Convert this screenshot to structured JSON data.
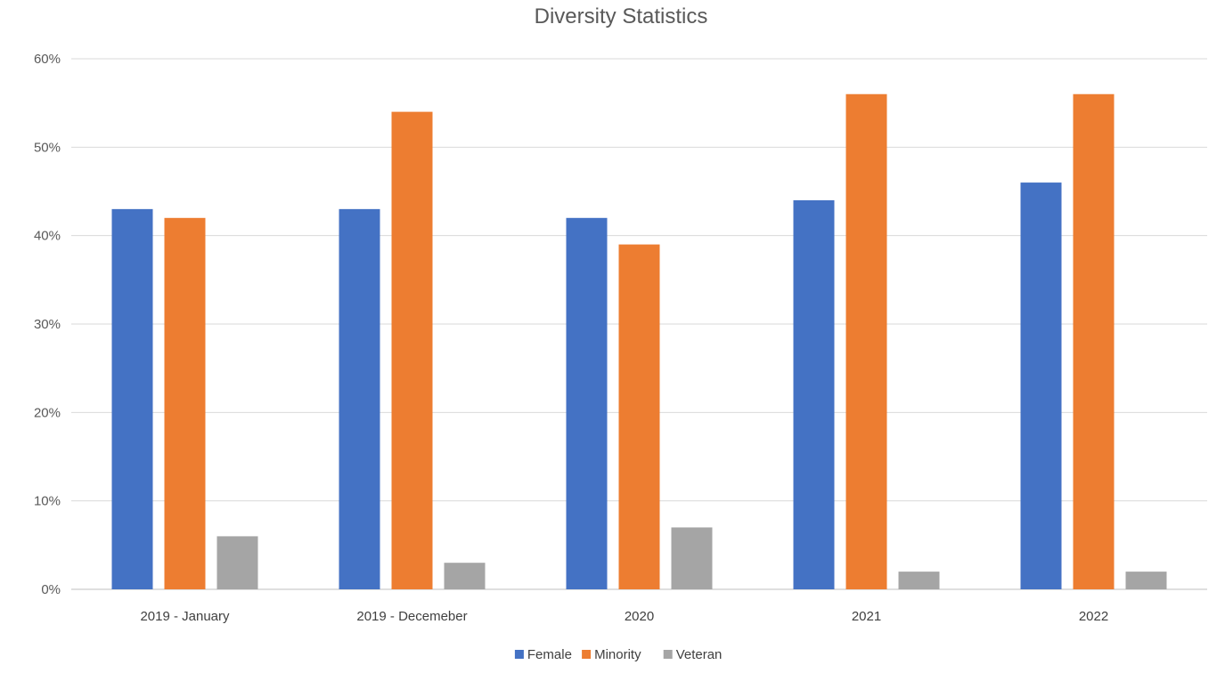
{
  "chart_data": {
    "type": "bar",
    "title": "Diversity Statistics",
    "xlabel": "",
    "ylabel": "",
    "categories": [
      "2019 - January",
      "2019 - Decemeber",
      "2020",
      "2021",
      "2022"
    ],
    "series": [
      {
        "name": "Female",
        "color": "#4472C4",
        "values": [
          43,
          43,
          42,
          44,
          46
        ]
      },
      {
        "name": "Minority",
        "color": "#ED7D31",
        "values": [
          42,
          54,
          39,
          56,
          56
        ]
      },
      {
        "name": "Veteran",
        "color": "#A5A5A5",
        "values": [
          6,
          3,
          7,
          2,
          2
        ]
      }
    ],
    "ylim": [
      0,
      60
    ],
    "yticks": [
      0,
      10,
      20,
      30,
      40,
      50,
      60
    ],
    "ytick_labels": [
      "0%",
      "10%",
      "20%",
      "30%",
      "40%",
      "50%",
      "60%"
    ],
    "grid": true,
    "legend_position": "bottom"
  }
}
